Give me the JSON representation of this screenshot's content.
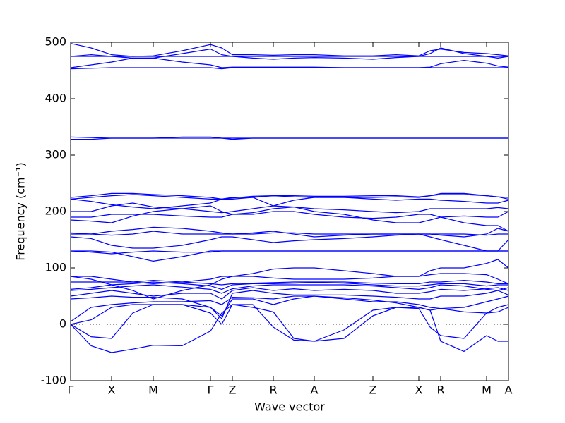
{
  "chart_data": {
    "type": "line",
    "y_label": "Frequency (cm⁻¹)",
    "x_label": "Wave vector",
    "color": "#0000ff",
    "hline": 0,
    "xlim": [
      0,
      620
    ],
    "ylim": [
      -100,
      500
    ],
    "yticks": [
      -100,
      0,
      100,
      200,
      300,
      400,
      500
    ],
    "xticks": [
      {
        "value": 0,
        "label": "Γ"
      },
      {
        "value": 58,
        "label": "X"
      },
      {
        "value": 117,
        "label": "M"
      },
      {
        "value": 198,
        "label": "Γ"
      },
      {
        "value": 229,
        "label": "Z"
      },
      {
        "value": 287,
        "label": "R"
      },
      {
        "value": 345,
        "label": "A"
      },
      {
        "value": 428,
        "label": "Z"
      },
      {
        "value": 493,
        "label": "X"
      },
      {
        "value": 524,
        "label": "R"
      },
      {
        "value": 589,
        "label": "M"
      },
      {
        "value": 620,
        "label": "A"
      }
    ],
    "x": [
      0,
      29,
      58,
      88,
      117,
      158,
      198,
      214,
      229,
      258,
      287,
      316,
      345,
      387,
      428,
      461,
      493,
      509,
      524,
      557,
      589,
      605,
      620
    ],
    "series": [
      {
        "values": [
          0,
          -38,
          -50,
          -44,
          -37,
          -38,
          -12,
          20,
          35,
          30,
          22,
          -25,
          -30,
          -25,
          15,
          30,
          30,
          25,
          -30,
          -48,
          -20,
          -30,
          -30
        ]
      },
      {
        "values": [
          0,
          -22,
          -25,
          20,
          35,
          35,
          20,
          0,
          35,
          35,
          -5,
          -28,
          -30,
          -10,
          25,
          30,
          28,
          -5,
          -20,
          -25,
          20,
          22,
          30
        ]
      },
      {
        "values": [
          0,
          8,
          30,
          35,
          35,
          35,
          30,
          15,
          45,
          45,
          35,
          45,
          50,
          45,
          40,
          40,
          35,
          30,
          28,
          22,
          20,
          30,
          35
        ]
      },
      {
        "values": [
          5,
          30,
          35,
          38,
          40,
          40,
          42,
          35,
          48,
          47,
          45,
          50,
          50,
          47,
          43,
          38,
          30,
          25,
          28,
          30,
          40,
          45,
          50
        ]
      },
      {
        "values": [
          45,
          47,
          50,
          48,
          48,
          45,
          30,
          10,
          55,
          60,
          55,
          52,
          52,
          52,
          50,
          48,
          45,
          45,
          50,
          50,
          55,
          60,
          52
        ]
      },
      {
        "values": [
          50,
          55,
          60,
          55,
          50,
          55,
          55,
          45,
          60,
          65,
          60,
          63,
          60,
          62,
          60,
          55,
          55,
          58,
          62,
          60,
          63,
          65,
          60
        ]
      },
      {
        "values": [
          60,
          62,
          65,
          68,
          70,
          66,
          62,
          55,
          63,
          68,
          70,
          70,
          70,
          70,
          68,
          65,
          62,
          65,
          70,
          68,
          62,
          60,
          65
        ]
      },
      {
        "values": [
          62,
          65,
          70,
          72,
          75,
          72,
          68,
          62,
          70,
          72,
          72,
          73,
          74,
          73,
          70,
          68,
          68,
          70,
          72,
          72,
          68,
          70,
          70
        ]
      },
      {
        "values": [
          75,
          75,
          75,
          75,
          78,
          75,
          72,
          70,
          72,
          73,
          74,
          75,
          75,
          75,
          73,
          72,
          72,
          75,
          75,
          78,
          75,
          72,
          72
        ]
      },
      {
        "values": [
          85,
          85,
          80,
          75,
          72,
          75,
          80,
          85,
          85,
          90,
          98,
          100,
          100,
          95,
          90,
          85,
          85,
          95,
          100,
          100,
          108,
          115,
          100
        ]
      },
      {
        "values": [
          85,
          80,
          70,
          60,
          45,
          60,
          70,
          80,
          85,
          85,
          82,
          80,
          80,
          80,
          82,
          85,
          85,
          88,
          90,
          90,
          88,
          80,
          72
        ]
      },
      {
        "values": [
          130,
          130,
          128,
          120,
          112,
          120,
          130,
          130,
          130,
          130,
          130,
          130,
          130,
          130,
          130,
          130,
          130,
          130,
          130,
          130,
          130,
          130,
          130
        ]
      },
      {
        "values": [
          130,
          128,
          125,
          128,
          130,
          128,
          128,
          130,
          130,
          130,
          130,
          130,
          130,
          130,
          130,
          130,
          130,
          130,
          130,
          130,
          130,
          130,
          130
        ]
      },
      {
        "values": [
          155,
          152,
          140,
          135,
          135,
          140,
          150,
          155,
          155,
          150,
          145,
          148,
          150,
          152,
          155,
          158,
          160,
          155,
          150,
          140,
          130,
          130,
          150
        ]
      },
      {
        "values": [
          160,
          160,
          158,
          160,
          165,
          160,
          160,
          160,
          160,
          162,
          165,
          160,
          155,
          158,
          160,
          160,
          160,
          160,
          160,
          160,
          158,
          160,
          160
        ]
      },
      {
        "values": [
          162,
          160,
          165,
          168,
          172,
          170,
          165,
          162,
          160,
          160,
          162,
          162,
          160,
          160,
          160,
          160,
          160,
          160,
          158,
          155,
          160,
          170,
          165
        ]
      },
      {
        "values": [
          185,
          183,
          180,
          192,
          200,
          205,
          210,
          200,
          195,
          195,
          200,
          200,
          195,
          190,
          188,
          190,
          195,
          195,
          190,
          180,
          175,
          175,
          165
        ]
      },
      {
        "values": [
          190,
          190,
          195,
          195,
          195,
          192,
          190,
          190,
          195,
          198,
          205,
          208,
          200,
          195,
          185,
          180,
          180,
          185,
          190,
          192,
          190,
          190,
          200
        ]
      },
      {
        "values": [
          200,
          200,
          210,
          215,
          208,
          205,
          200,
          198,
          200,
          205,
          210,
          208,
          205,
          203,
          200,
          198,
          200,
          205,
          205,
          205,
          205,
          207,
          205
        ]
      },
      {
        "values": [
          222,
          218,
          212,
          208,
          205,
          210,
          215,
          222,
          225,
          225,
          210,
          220,
          225,
          225,
          222,
          220,
          222,
          222,
          220,
          218,
          215,
          215,
          220
        ]
      },
      {
        "values": [
          222,
          225,
          228,
          230,
          228,
          225,
          222,
          222,
          222,
          225,
          228,
          226,
          225,
          225,
          225,
          226,
          225,
          228,
          230,
          230,
          228,
          226,
          222
        ]
      },
      {
        "values": [
          225,
          228,
          232,
          232,
          230,
          228,
          225,
          222,
          224,
          227,
          228,
          228,
          227,
          227,
          228,
          228,
          226,
          228,
          232,
          232,
          228,
          226,
          225
        ]
      },
      {
        "values": [
          328,
          328,
          330,
          330,
          330,
          332,
          332,
          330,
          328,
          330,
          330,
          330,
          330,
          330,
          330,
          330,
          330,
          330,
          330,
          330,
          330,
          330,
          330
        ]
      },
      {
        "values": [
          332,
          331,
          330,
          330,
          330,
          330,
          330,
          330,
          330,
          330,
          330,
          330,
          330,
          330,
          330,
          330,
          330,
          330,
          330,
          330,
          330,
          330,
          330
        ]
      },
      {
        "values": [
          453,
          454,
          455,
          455,
          455,
          455,
          455,
          453,
          455,
          455,
          455,
          455,
          455,
          455,
          455,
          455,
          455,
          455,
          455,
          455,
          455,
          455,
          455
        ]
      },
      {
        "values": [
          455,
          460,
          465,
          472,
          472,
          465,
          460,
          455,
          456,
          456,
          456,
          456,
          456,
          455,
          455,
          455,
          455,
          456,
          462,
          468,
          463,
          458,
          456
        ]
      },
      {
        "values": [
          475,
          475,
          475,
          475,
          475,
          475,
          475,
          475,
          475,
          475,
          475,
          475,
          475,
          475,
          475,
          475,
          475,
          475,
          475,
          475,
          475,
          475,
          475
        ]
      },
      {
        "values": [
          475,
          478,
          475,
          472,
          472,
          480,
          488,
          478,
          475,
          472,
          470,
          472,
          473,
          472,
          470,
          473,
          475,
          480,
          490,
          480,
          475,
          472,
          475
        ]
      },
      {
        "values": [
          498,
          490,
          478,
          475,
          476,
          485,
          496,
          490,
          478,
          478,
          477,
          478,
          478,
          476,
          476,
          478,
          476,
          485,
          488,
          482,
          480,
          478,
          476
        ]
      }
    ]
  }
}
